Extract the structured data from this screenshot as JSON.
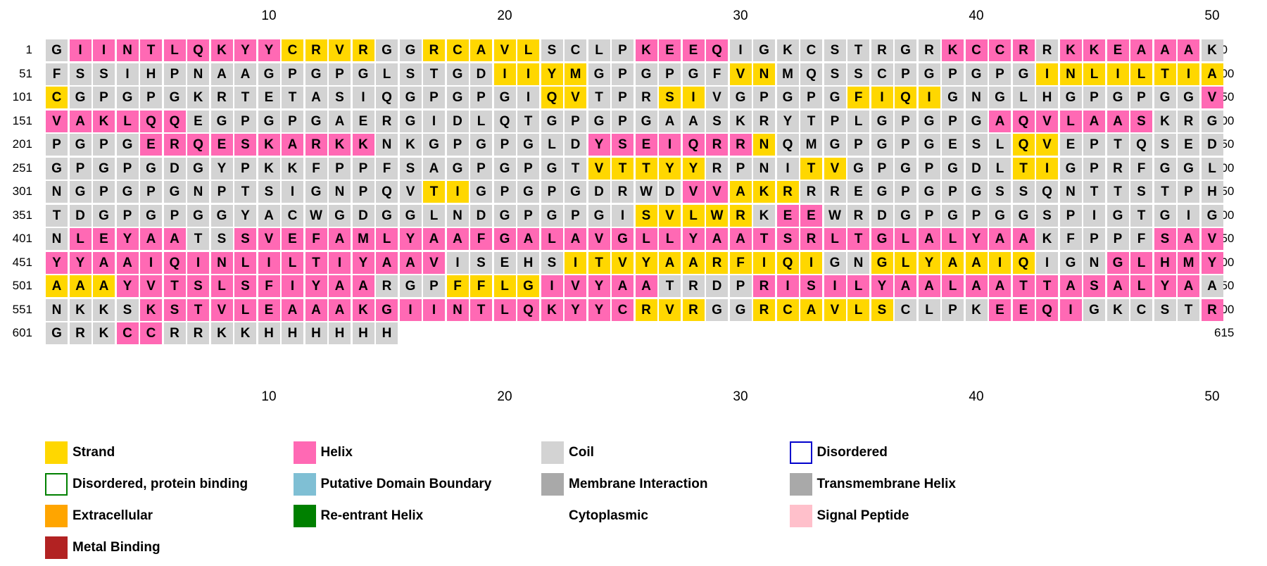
{
  "ruler_labels": [
    "10",
    "20",
    "30",
    "40",
    "50"
  ],
  "rows": [
    {
      "start": "1",
      "end": "50",
      "seq": "GIINTLQKYYCRVRGGRCAVLSCLPKEEQIGKCSTRGRKCCRRKKEAAAK",
      "ss": "CHHHHHHHHHSSSSCCSSSSSCCCCHHHHCCCCCCCCCHHHHCHHHHHHC"
    },
    {
      "start": "51",
      "end": "100",
      "seq": "FSSIHPNAAGPGPGLSTGDIIYMGPGPGFVNMQSSCPGPGPGINLILTIA",
      "ss": "CCCCCCCCCCCCCCCCCCCSSSSCCCCCCSSCCCCCCCCCCCSSSSSSSS"
    },
    {
      "start": "101",
      "end": "150",
      "seq": "CGPGPGKRTETASIQGPGPGIQVTPRSIVGPGPGFIQIGNGLHGPGPGGV",
      "ss": "SCCCCCCCCCCCCCCCCCCCCSSCCCSSCCCCCCSSSSCCCCCCCCCCCH"
    },
    {
      "start": "151",
      "end": "200",
      "seq": "VAKLQQEGPGPGAERGIDLQTGPGPGAASKRYTPLGPGPGAQVLAASKRG",
      "ss": "HHHHHHCCCCCCCCCCCCCCCCCCCCCCCCCCCCCCCCCCHHHHHHHCCC"
    },
    {
      "start": "201",
      "end": "250",
      "seq": "PGPGERQESKARKKNKGPGPGLDYSEIQRRNQMGPGPGESLQVEPTQSED",
      "ss": "CCCCHHHHHHHHHHCCCCCCCCCHHHHHHHSCCCCCCCCCCSSCCCCCCC"
    },
    {
      "start": "251",
      "end": "300",
      "seq": "GPGPGDGYPKKFPPFSAGPGPGTVTTYYRPNITVGPGPGDLTIGPRFGGL",
      "ss": "CCCCCCCCCCCCCCCCCCCCCCCSSSSSCCCCSSCCCCCCCSSCCCCCCC"
    },
    {
      "start": "301",
      "end": "350",
      "seq": "NGPGPGNPTSIGNPQVTIGPGPGDRWDVVAKRRREGPGPGSSQNTTSTPH",
      "ss": "CCCCCCCCCCCCCCCCSSCCCCCCCCCHHSSSCCCCCCCCCCCCCCCCCC"
    },
    {
      "start": "351",
      "end": "400",
      "seq": "TDGPGPGGYACWGDGGLNDGPGPGISVLWRKEEWRDGPGPGGSPIGTGIG",
      "ss": "CCCCCCCCCCCCCCCCCCCCCCCCCSSSSSCHHCCCCCCCCCCCCCCCCC"
    },
    {
      "start": "401",
      "end": "450",
      "seq": "NLEYAATSSVEFAMLYAAFGALAVGLLYAATSRLTGLALYAAKFPPFSAV",
      "ss": "CHHHHHCCHHHHHHHHHHHHHHHHHHHHHHHHHHHHHHHHHHCCCCCHHH"
    },
    {
      "start": "451",
      "end": "500",
      "seq": "YYAAIQINLILTIYAAVISEHSITVYAARFIQIGNGLYAAIQIGNGLHMY",
      "ss": "HHHHHHHHHHHHHHHHHCCCCCSSSSSSSSSSSCCSSSSSSSCCCHHHHH"
    },
    {
      "start": "501",
      "end": "550",
      "seq": "AAAYVTSLSFIYAARGPFFLGIVYAATRDPRISILYAALAATTASALYAA",
      "ss": "SSSHHHHHHHHHHHCCCSSSSHHHHHCCCCHHHHHHHHHHHHHHHHHHHC"
    },
    {
      "start": "551",
      "end": "600",
      "seq": "NKKSKSTVLEAAAKGIINTLQKYYCRVRGGRCAVLSCLPKEEQIGKCSTR",
      "ss": "CCCCHHHHHHHHHHHHHHHHHHHHHSSSCCSSSSSSCCCCHHHHCCCCCH"
    },
    {
      "start": "601",
      "end": "615",
      "seq": "GRKCCRRKKHHHHHH",
      "ss": "CCCHHCCCCCCCCCC"
    }
  ],
  "ss_colors": {
    "S": "#FFD700",
    "H": "#FF69B4",
    "C": "#D3D3D3"
  },
  "legend": [
    {
      "label": "Strand",
      "fill": "#FFD700",
      "border": "#FFD700"
    },
    {
      "label": "Helix",
      "fill": "#FF69B4",
      "border": "#FF69B4"
    },
    {
      "label": "Coil",
      "fill": "#D3D3D3",
      "border": "#D3D3D3"
    },
    {
      "label": "Disordered",
      "fill": "#FFFFFF",
      "border": "#0000CC"
    },
    {
      "label": "Disordered, protein binding",
      "fill": "#FFFFFF",
      "border": "#008000"
    },
    {
      "label": "Putative Domain Boundary",
      "fill": "#7FBFD4",
      "border": "#7FBFD4"
    },
    {
      "label": "Membrane Interaction",
      "fill": "#A9A9A9",
      "border": "#A9A9A9"
    },
    {
      "label": "Transmembrane Helix",
      "fill": "#A9A9A9",
      "border": "#A9A9A9"
    },
    {
      "label": "Extracellular",
      "fill": "#FFA500",
      "border": "#FFA500"
    },
    {
      "label": "Re-entrant Helix",
      "fill": "#008000",
      "border": "#008000"
    },
    {
      "label": "Cytoplasmic",
      "fill": "#FFFFFF",
      "border": "#FFFFFF"
    },
    {
      "label": "Signal Peptide",
      "fill": "#FFC0CB",
      "border": "#FFC0CB"
    },
    {
      "label": "Metal Binding",
      "fill": "#B22222",
      "border": "#B22222"
    }
  ]
}
